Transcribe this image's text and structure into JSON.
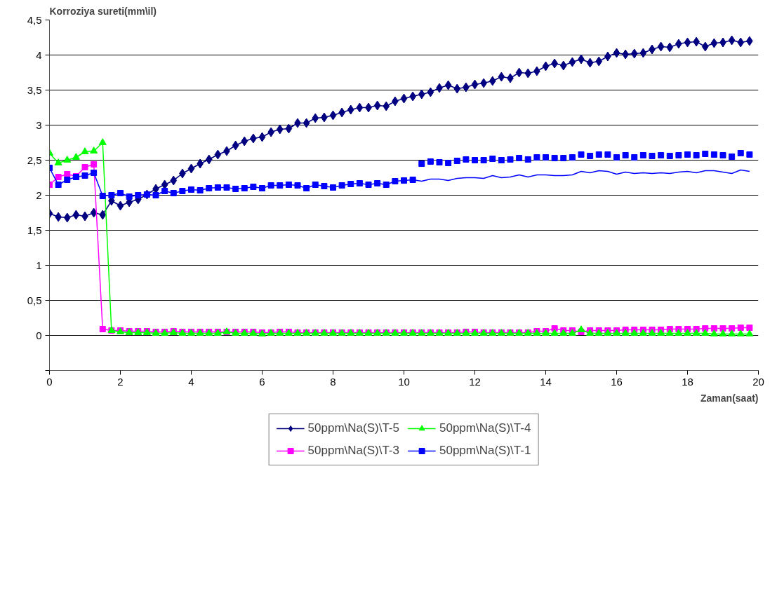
{
  "chart_data": {
    "type": "line",
    "xlabel": "Zaman(saat)",
    "ylabel": "Korroziya sureti(mm\\il)",
    "x": [
      0,
      0.25,
      0.5,
      0.75,
      1,
      1.25,
      1.5,
      1.75,
      2,
      2.25,
      2.5,
      2.75,
      3,
      3.25,
      3.5,
      3.75,
      4,
      4.25,
      4.5,
      4.75,
      5,
      5.25,
      5.5,
      5.75,
      6,
      6.25,
      6.5,
      6.75,
      7,
      7.25,
      7.5,
      7.75,
      8,
      8.25,
      8.5,
      8.75,
      9,
      9.25,
      9.5,
      9.75,
      10,
      10.25,
      10.5,
      10.75,
      11,
      11.25,
      11.5,
      11.75,
      12,
      12.25,
      12.5,
      12.75,
      13,
      13.25,
      13.5,
      13.75,
      14,
      14.25,
      14.5,
      14.75,
      15,
      15.25,
      15.5,
      15.75,
      16,
      16.25,
      16.5,
      16.75,
      17,
      17.25,
      17.5,
      17.75,
      18,
      18.25,
      18.5,
      18.75,
      19,
      19.25,
      19.5,
      19.75
    ],
    "xlim": [
      0,
      20
    ],
    "xticks": [
      0,
      2,
      4,
      6,
      8,
      10,
      12,
      14,
      16,
      18,
      20
    ],
    "ylim": [
      -0.5,
      4.5
    ],
    "yticks": [
      {
        "value": -0.5,
        "label": null
      },
      0,
      {
        "value": 0.5,
        "label": "0,5"
      },
      1,
      {
        "value": 1.5,
        "label": "1,5"
      },
      2,
      {
        "value": 2.5,
        "label": "2,5"
      },
      3,
      {
        "value": 3.5,
        "label": "3,5"
      },
      4,
      {
        "value": 4.5,
        "label": "4,5"
      }
    ],
    "grid": "y",
    "legend": "bottom",
    "line_style": "solid",
    "series": [
      {
        "name": "50ppm\\Na(S)\\T-5",
        "color": "#000080",
        "marker": "diamond",
        "values": [
          1.74,
          1.69,
          1.68,
          1.72,
          1.7,
          1.75,
          1.72,
          1.92,
          1.85,
          1.9,
          1.94,
          2.01,
          2.09,
          2.15,
          2.21,
          2.31,
          2.38,
          2.45,
          2.51,
          2.58,
          2.63,
          2.71,
          2.77,
          2.81,
          2.83,
          2.9,
          2.94,
          2.95,
          3.03,
          3.03,
          3.1,
          3.11,
          3.14,
          3.18,
          3.22,
          3.25,
          3.25,
          3.28,
          3.27,
          3.34,
          3.38,
          3.41,
          3.44,
          3.47,
          3.53,
          3.57,
          3.52,
          3.54,
          3.58,
          3.6,
          3.63,
          3.69,
          3.67,
          3.75,
          3.74,
          3.77,
          3.84,
          3.88,
          3.85,
          3.9,
          3.94,
          3.89,
          3.91,
          3.98,
          4.03,
          4.01,
          4.02,
          4.03,
          4.08,
          4.12,
          4.11,
          4.16,
          4.18,
          4.19,
          4.12,
          4.17,
          4.18,
          4.21,
          4.18,
          4.2
        ]
      },
      {
        "name": "50ppm\\Na(S)\\T-3",
        "color": "#ff00ff",
        "marker": "square",
        "values": [
          2.15,
          2.26,
          2.3,
          2.27,
          2.4,
          2.44,
          0.09,
          0.07,
          0.07,
          0.06,
          0.06,
          0.06,
          0.05,
          0.05,
          0.06,
          0.05,
          0.05,
          0.05,
          0.05,
          0.05,
          0.05,
          0.05,
          0.05,
          0.05,
          0.04,
          0.04,
          0.05,
          0.05,
          0.04,
          0.04,
          0.04,
          0.04,
          0.04,
          0.04,
          0.04,
          0.04,
          0.04,
          0.04,
          0.04,
          0.04,
          0.04,
          0.04,
          0.04,
          0.04,
          0.04,
          0.04,
          0.04,
          0.05,
          0.05,
          0.04,
          0.04,
          0.04,
          0.04,
          0.04,
          0.04,
          0.06,
          0.06,
          0.1,
          0.07,
          0.07,
          0.05,
          0.07,
          0.07,
          0.07,
          0.07,
          0.08,
          0.08,
          0.08,
          0.08,
          0.08,
          0.09,
          0.09,
          0.09,
          0.09,
          0.1,
          0.1,
          0.1,
          0.1,
          0.11,
          0.11
        ]
      },
      {
        "name": "50ppm\\Na(S)\\T-4",
        "color": "#00ff00",
        "marker": "triangle",
        "values": [
          2.6,
          2.46,
          2.5,
          2.54,
          2.62,
          2.63,
          2.75,
          0.07,
          0.05,
          0.04,
          0.04,
          0.04,
          0.03,
          0.03,
          0.04,
          0.03,
          0.03,
          0.03,
          0.03,
          0.03,
          0.05,
          0.03,
          0.03,
          0.03,
          0.02,
          0.03,
          0.03,
          0.03,
          0.03,
          0.03,
          0.03,
          0.03,
          0.03,
          0.03,
          0.03,
          0.03,
          0.03,
          0.03,
          0.03,
          0.03,
          0.03,
          0.03,
          0.03,
          0.03,
          0.03,
          0.03,
          0.03,
          0.03,
          0.03,
          0.03,
          0.03,
          0.03,
          0.03,
          0.03,
          0.03,
          0.03,
          0.03,
          0.03,
          0.03,
          0.03,
          0.08,
          0.03,
          0.03,
          0.03,
          0.03,
          0.03,
          0.03,
          0.03,
          0.03,
          0.03,
          0.03,
          0.03,
          0.03,
          0.03,
          0.03,
          0.02,
          0.02,
          0.02,
          0.02,
          0.02
        ]
      },
      {
        "name": "50ppm\\Na(S)\\T-1",
        "color": "#0000ff",
        "marker": "square",
        "values": [
          2.39,
          2.15,
          2.22,
          2.26,
          2.28,
          2.32,
          1.99,
          2.0,
          2.03,
          1.98,
          2.0,
          2.01,
          2.0,
          2.06,
          2.03,
          2.06,
          2.08,
          2.07,
          2.1,
          2.11,
          2.11,
          2.09,
          2.1,
          2.12,
          2.1,
          2.14,
          2.14,
          2.15,
          2.14,
          2.1,
          2.15,
          2.13,
          2.11,
          2.14,
          2.16,
          2.17,
          2.15,
          2.17,
          2.15,
          2.2,
          2.21,
          2.22,
          null,
          null,
          null,
          null,
          null,
          null,
          null,
          null,
          null,
          null,
          null,
          null,
          null,
          null,
          null,
          null,
          null,
          null,
          null,
          null,
          null,
          null,
          null,
          null,
          null,
          null,
          null,
          null,
          null,
          null,
          null,
          null,
          null,
          null,
          null,
          null,
          null,
          null
        ]
      },
      {
        "color": "#0000ff",
        "marker": "none",
        "values": [
          null,
          null,
          null,
          null,
          null,
          null,
          null,
          null,
          null,
          null,
          null,
          null,
          null,
          null,
          null,
          null,
          null,
          null,
          null,
          null,
          null,
          null,
          null,
          null,
          null,
          null,
          null,
          null,
          null,
          null,
          null,
          null,
          null,
          null,
          null,
          null,
          null,
          null,
          null,
          null,
          null,
          2.22,
          2.2,
          2.23,
          2.23,
          2.21,
          2.24,
          2.25,
          2.25,
          2.24,
          2.28,
          2.25,
          2.26,
          2.29,
          2.26,
          2.29,
          2.29,
          2.28,
          2.28,
          2.29,
          2.34,
          2.32,
          2.35,
          2.34,
          2.3,
          2.33,
          2.31,
          2.32,
          2.31,
          2.32,
          2.31,
          2.33,
          2.34,
          2.32,
          2.35,
          2.35,
          2.33,
          2.31,
          2.36,
          2.34
        ]
      },
      {
        "type": "scatter",
        "color": "#0000ff",
        "marker": "square",
        "values": [
          null,
          null,
          null,
          null,
          null,
          null,
          null,
          null,
          null,
          null,
          null,
          null,
          null,
          null,
          null,
          null,
          null,
          null,
          null,
          null,
          null,
          null,
          null,
          null,
          null,
          null,
          null,
          null,
          null,
          null,
          null,
          null,
          null,
          null,
          null,
          null,
          null,
          null,
          null,
          null,
          null,
          null,
          2.45,
          2.48,
          2.47,
          2.46,
          2.49,
          2.51,
          2.5,
          2.5,
          2.52,
          2.5,
          2.51,
          2.53,
          2.51,
          2.54,
          2.54,
          2.53,
          2.53,
          2.54,
          2.58,
          2.56,
          2.58,
          2.58,
          2.54,
          2.57,
          2.54,
          2.57,
          2.56,
          2.57,
          2.56,
          2.57,
          2.58,
          2.57,
          2.59,
          2.58,
          2.57,
          2.55,
          2.6,
          2.58
        ]
      }
    ]
  }
}
